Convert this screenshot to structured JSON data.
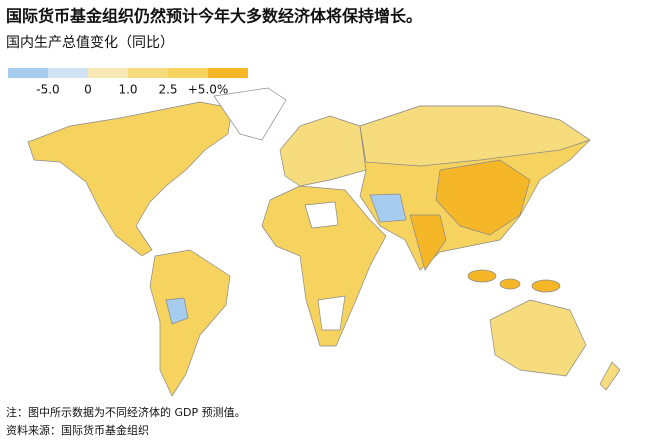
{
  "header": {
    "title": "国际货币基金组织仍然预计今年大多数经济体将保持增长。",
    "subtitle": "国内生产总值变化（同比）"
  },
  "legend": {
    "colors": [
      "#a6cdf0",
      "#cfe2f3",
      "#f8e8b6",
      "#f6dc7c",
      "#f6d35e",
      "#f5b727"
    ],
    "ticks": [
      {
        "value": -5,
        "label": "-5.0"
      },
      0,
      {
        "value": 1,
        "label": "1.0"
      },
      2.5,
      {
        "value": 5,
        "label": "+5.0%"
      }
    ]
  },
  "notes": [
    "注：图中所示数据为不同经济体的 GDP 预测值。",
    "资料来源：国际货币基金组织"
  ]
}
